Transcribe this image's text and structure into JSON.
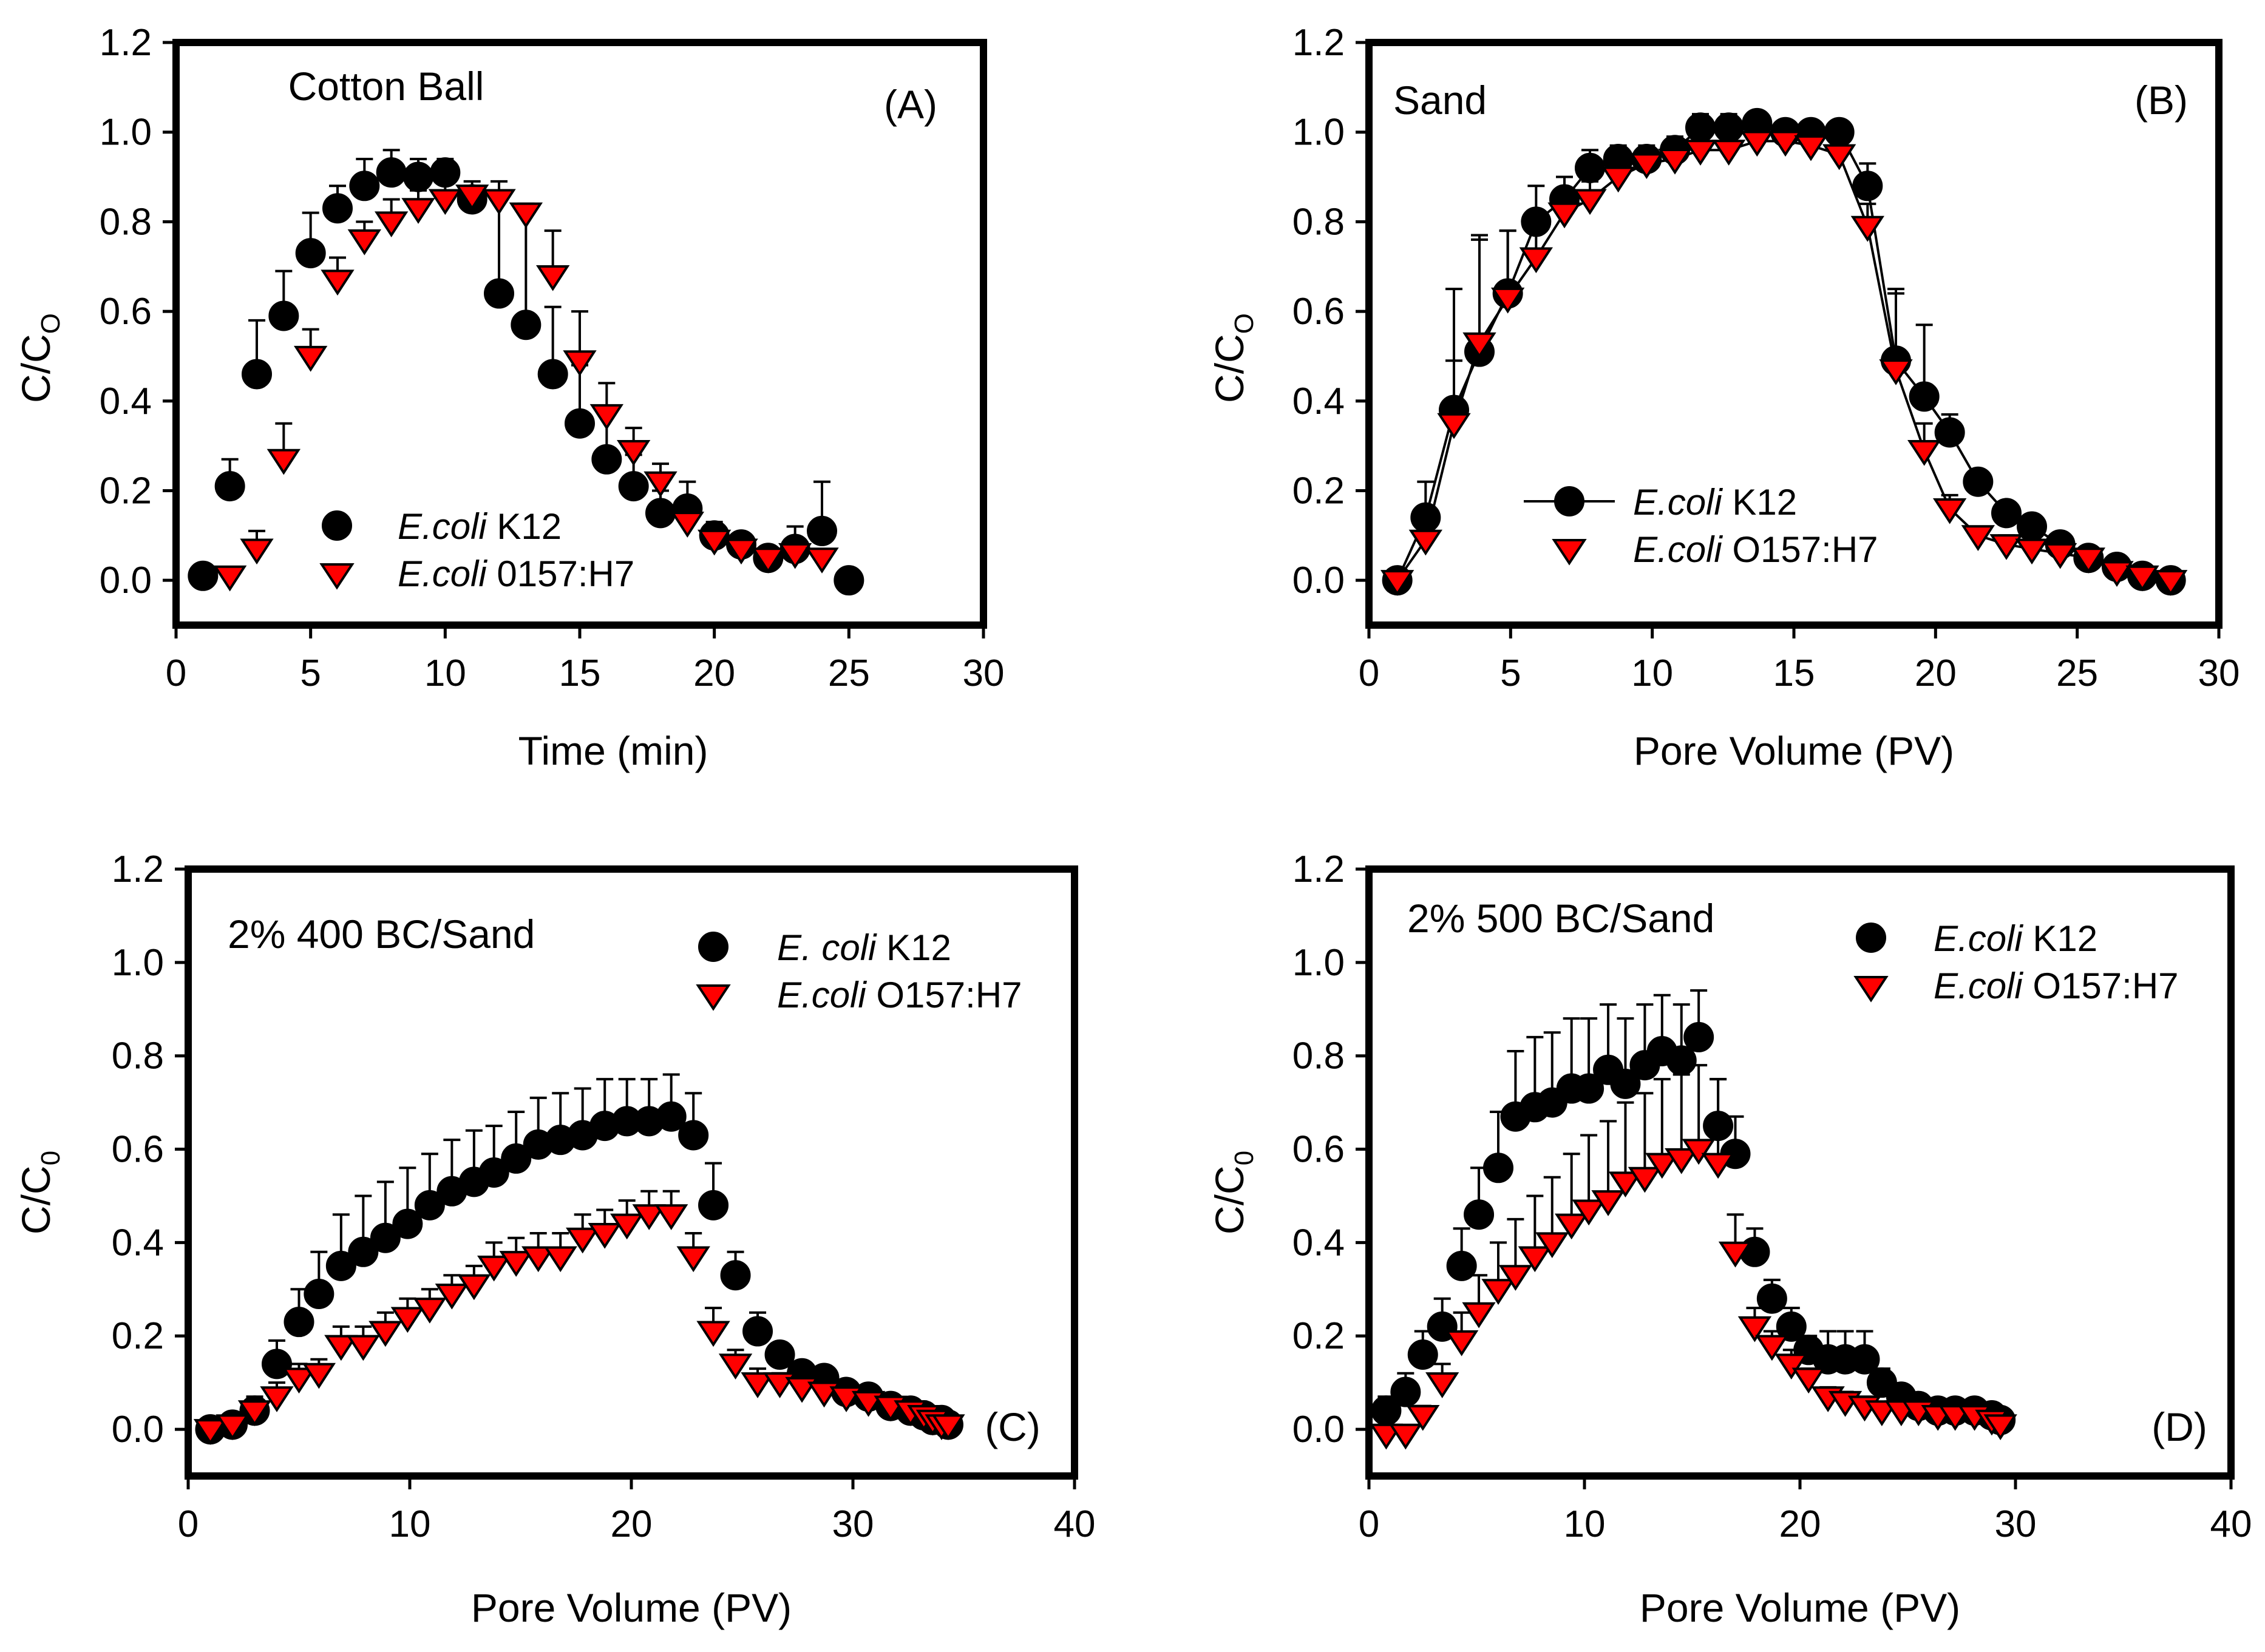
{
  "chart_data": [
    {
      "id": "A",
      "type": "scatter",
      "panel_label": "(A)",
      "annotation": "Cotton Ball",
      "xlabel": "Time (min)",
      "ylabel_main": "C/C",
      "ylabel_sub": "O",
      "xlim": [
        0,
        30
      ],
      "ylim": [
        -0.1,
        1.2
      ],
      "xticks": [
        "0",
        "5",
        "10",
        "15",
        "20",
        "25",
        "30"
      ],
      "yticks": [
        "0.0",
        "0.2",
        "0.4",
        "0.6",
        "0.8",
        "1.0",
        "1.2"
      ],
      "legend_position": "bottom-left",
      "series": [
        {
          "name_italic": "E.coli",
          "name_rest": " K12",
          "marker": "circle",
          "line": false,
          "x": [
            1,
            2,
            3,
            4,
            5,
            6,
            7,
            8,
            9,
            10,
            11,
            12,
            13,
            14,
            15,
            16,
            17,
            18,
            19,
            20,
            21,
            22,
            23,
            24,
            25
          ],
          "y": [
            0.01,
            0.21,
            0.46,
            0.59,
            0.73,
            0.83,
            0.88,
            0.91,
            0.9,
            0.91,
            0.85,
            0.64,
            0.57,
            0.46,
            0.35,
            0.27,
            0.21,
            0.15,
            0.16,
            0.1,
            0.08,
            0.05,
            0.07,
            0.11,
            0.0
          ],
          "err": [
            0,
            0.06,
            0.12,
            0.1,
            0.09,
            0.05,
            0.06,
            0.05,
            0.04,
            0.03,
            0.03,
            0.25,
            0.27,
            0.15,
            0.13,
            0.1,
            0.07,
            0.05,
            0.06,
            0.03,
            0.02,
            0.02,
            0.05,
            0.11,
            0
          ]
        },
        {
          "name_italic": "E.coli",
          "name_rest": " 0157:H7",
          "marker": "triangle",
          "line": false,
          "x": [
            2,
            3,
            4,
            5,
            6,
            7,
            8,
            9,
            10,
            11,
            12,
            13,
            14,
            15,
            16,
            17,
            18,
            19,
            20,
            21,
            22,
            23,
            24
          ],
          "y": [
            0.01,
            0.07,
            0.27,
            0.5,
            0.67,
            0.76,
            0.8,
            0.83,
            0.85,
            0.86,
            0.85,
            0.82,
            0.68,
            0.49,
            0.37,
            0.29,
            0.22,
            0.13,
            0.09,
            0.07,
            0.05,
            0.06,
            0.05
          ],
          "err": [
            0,
            0.04,
            0.08,
            0.06,
            0.05,
            0.04,
            0.05,
            0.04,
            0.04,
            0.03,
            0.02,
            0.02,
            0.1,
            0.11,
            0.07,
            0.05,
            0.04,
            0.03,
            0.02,
            0.02,
            0.02,
            0.03,
            0.02
          ]
        }
      ]
    },
    {
      "id": "B",
      "type": "line",
      "panel_label": "(B)",
      "annotation": "Sand",
      "xlabel": "Pore Volume (PV)",
      "ylabel_main": "C/C",
      "ylabel_sub": "O",
      "xlim": [
        0,
        30
      ],
      "ylim": [
        -0.1,
        1.2
      ],
      "xticks": [
        "0",
        "5",
        "10",
        "15",
        "20",
        "25",
        "30"
      ],
      "yticks": [
        "0.0",
        "0.2",
        "0.4",
        "0.6",
        "0.8",
        "1.0",
        "1.2"
      ],
      "legend_position": "bottom-left",
      "series": [
        {
          "name_italic": "E.coli",
          "name_rest": " K12",
          "marker": "circle",
          "line": true,
          "x": [
            1.0,
            2.0,
            3.0,
            3.9,
            4.9,
            5.9,
            6.9,
            7.8,
            8.8,
            9.8,
            10.8,
            11.7,
            12.7,
            13.7,
            14.7,
            15.6,
            16.6,
            17.6,
            18.6,
            19.6,
            20.5,
            21.5,
            22.5,
            23.4,
            24.4,
            25.4,
            26.4,
            27.3,
            28.3
          ],
          "y": [
            0.0,
            0.14,
            0.38,
            0.51,
            0.64,
            0.8,
            0.85,
            0.92,
            0.94,
            0.94,
            0.96,
            1.01,
            1.01,
            1.02,
            1.0,
            1.0,
            1.0,
            0.88,
            0.49,
            0.41,
            0.33,
            0.22,
            0.15,
            0.12,
            0.08,
            0.05,
            0.03,
            0.01,
            0.0
          ],
          "err": [
            0,
            0.08,
            0.27,
            0.25,
            0.14,
            0.08,
            0.05,
            0.04,
            0.03,
            0.03,
            0.03,
            0.03,
            0.03,
            0.02,
            0.02,
            0.02,
            0.02,
            0.05,
            0.16,
            0.16,
            0.04,
            0.02,
            0.02,
            0.02,
            0.02,
            0.01,
            0.01,
            0,
            0
          ]
        },
        {
          "name_italic": "E.coli",
          "name_rest": " O157:H7",
          "marker": "triangle",
          "line": true,
          "x": [
            1.0,
            2.0,
            3.0,
            3.9,
            4.9,
            5.9,
            6.9,
            7.8,
            8.8,
            9.8,
            10.8,
            11.7,
            12.7,
            13.7,
            14.7,
            15.6,
            16.6,
            17.6,
            18.6,
            19.6,
            20.5,
            21.5,
            22.5,
            23.4,
            24.4,
            25.4,
            26.4,
            27.3,
            28.3
          ],
          "y": [
            0.0,
            0.09,
            0.35,
            0.53,
            0.63,
            0.72,
            0.82,
            0.85,
            0.9,
            0.93,
            0.94,
            0.96,
            0.96,
            0.98,
            0.98,
            0.97,
            0.95,
            0.79,
            0.47,
            0.29,
            0.16,
            0.1,
            0.08,
            0.07,
            0.06,
            0.05,
            0.02,
            0.01,
            0.0
          ],
          "err": [
            0,
            0.07,
            0.14,
            0.24,
            0.15,
            0.07,
            0.05,
            0.04,
            0.03,
            0.03,
            0.03,
            0.03,
            0.03,
            0.02,
            0.02,
            0.02,
            0.02,
            0.05,
            0.17,
            0.06,
            0.03,
            0.02,
            0.02,
            0.02,
            0.01,
            0.01,
            0.01,
            0,
            0
          ]
        }
      ]
    },
    {
      "id": "C",
      "type": "scatter",
      "panel_label": "(C)",
      "annotation": "2% 400 BC/Sand",
      "xlabel": "Pore Volume (PV)",
      "ylabel_main": "C/C",
      "ylabel_sub": "0",
      "xlim": [
        0,
        40
      ],
      "ylim": [
        -0.1,
        1.2
      ],
      "xticks": [
        "0",
        "10",
        "20",
        "30",
        "40"
      ],
      "yticks": [
        "0.0",
        "0.2",
        "0.4",
        "0.6",
        "0.8",
        "1.0",
        "1.2"
      ],
      "legend_position": "top-right",
      "series": [
        {
          "name_italic": "E. coli",
          "name_rest": " K12",
          "marker": "circle",
          "line": false,
          "x": [
            1.0,
            2.0,
            3.0,
            4.0,
            5.0,
            5.9,
            6.9,
            7.9,
            8.9,
            9.9,
            10.9,
            11.9,
            12.9,
            13.8,
            14.8,
            15.8,
            16.8,
            17.8,
            18.8,
            19.8,
            20.8,
            21.8,
            22.8,
            23.7,
            24.7,
            25.7,
            26.7,
            27.7,
            28.7,
            29.7,
            30.7,
            31.7,
            32.6,
            33.2,
            33.6,
            34.0,
            34.3
          ],
          "y": [
            0.0,
            0.01,
            0.04,
            0.14,
            0.23,
            0.29,
            0.35,
            0.38,
            0.41,
            0.44,
            0.48,
            0.51,
            0.53,
            0.55,
            0.58,
            0.61,
            0.62,
            0.63,
            0.65,
            0.66,
            0.66,
            0.67,
            0.63,
            0.48,
            0.33,
            0.21,
            0.16,
            0.12,
            0.11,
            0.08,
            0.07,
            0.05,
            0.04,
            0.03,
            0.02,
            0.02,
            0.01
          ],
          "err": [
            0,
            0.02,
            0.03,
            0.05,
            0.07,
            0.09,
            0.11,
            0.12,
            0.12,
            0.12,
            0.11,
            0.11,
            0.11,
            0.1,
            0.1,
            0.1,
            0.1,
            0.1,
            0.1,
            0.09,
            0.09,
            0.09,
            0.09,
            0.09,
            0.05,
            0.04,
            0.02,
            0.02,
            0.02,
            0.02,
            0.01,
            0.01,
            0.01,
            0.01,
            0.01,
            0.01,
            0
          ]
        },
        {
          "name_italic": "E.coli",
          "name_rest": " O157:H7",
          "marker": "triangle",
          "line": false,
          "x": [
            1.0,
            2.0,
            3.0,
            4.0,
            5.0,
            5.9,
            6.9,
            7.9,
            8.9,
            9.9,
            10.9,
            11.9,
            12.9,
            13.8,
            14.8,
            15.8,
            16.8,
            17.8,
            18.8,
            19.8,
            20.8,
            21.8,
            22.8,
            23.7,
            24.7,
            25.7,
            26.7,
            27.7,
            28.7,
            29.7,
            30.7,
            31.7,
            32.6,
            33.2,
            33.6,
            34.0,
            34.3
          ],
          "y": [
            0.0,
            0.01,
            0.04,
            0.07,
            0.11,
            0.12,
            0.18,
            0.18,
            0.21,
            0.24,
            0.26,
            0.29,
            0.31,
            0.35,
            0.36,
            0.37,
            0.37,
            0.41,
            0.42,
            0.44,
            0.46,
            0.46,
            0.37,
            0.21,
            0.14,
            0.1,
            0.1,
            0.09,
            0.08,
            0.07,
            0.06,
            0.05,
            0.04,
            0.03,
            0.02,
            0.01,
            0.01
          ],
          "err": [
            0,
            0.01,
            0.02,
            0.03,
            0.03,
            0.03,
            0.04,
            0.04,
            0.04,
            0.04,
            0.04,
            0.04,
            0.04,
            0.05,
            0.05,
            0.05,
            0.05,
            0.05,
            0.05,
            0.05,
            0.05,
            0.05,
            0.05,
            0.05,
            0.03,
            0.03,
            0.02,
            0.02,
            0.02,
            0.02,
            0.01,
            0.01,
            0.01,
            0.01,
            0.01,
            0.01,
            0
          ]
        }
      ]
    },
    {
      "id": "D",
      "type": "scatter",
      "panel_label": "(D)",
      "annotation": "2% 500 BC/Sand",
      "xlabel": "Pore Volume (PV)",
      "ylabel_main": "C/C",
      "ylabel_sub": "0",
      "xlim": [
        0,
        40
      ],
      "ylim": [
        -0.1,
        1.2
      ],
      "xticks": [
        "0",
        "10",
        "20",
        "30",
        "40"
      ],
      "yticks": [
        "0.0",
        "0.2",
        "0.4",
        "0.6",
        "0.8",
        "1.0",
        "1.2"
      ],
      "legend_position": "top-right",
      "series": [
        {
          "name_italic": "E.coli",
          "name_rest": " K12",
          "marker": "circle",
          "line": false,
          "x": [
            0.8,
            1.7,
            2.5,
            3.4,
            4.3,
            5.1,
            6.0,
            6.8,
            7.7,
            8.5,
            9.4,
            10.2,
            11.1,
            11.9,
            12.8,
            13.6,
            14.5,
            15.3,
            16.2,
            17.0,
            17.9,
            18.7,
            19.6,
            20.4,
            21.3,
            22.1,
            23.0,
            23.8,
            24.7,
            25.5,
            26.4,
            27.2,
            28.1,
            28.9,
            29.3
          ],
          "y": [
            0.04,
            0.08,
            0.16,
            0.22,
            0.35,
            0.46,
            0.56,
            0.67,
            0.69,
            0.7,
            0.73,
            0.73,
            0.77,
            0.74,
            0.78,
            0.81,
            0.79,
            0.84,
            0.65,
            0.59,
            0.38,
            0.28,
            0.22,
            0.17,
            0.15,
            0.15,
            0.15,
            0.1,
            0.07,
            0.05,
            0.04,
            0.04,
            0.04,
            0.03,
            0.02
          ],
          "err": [
            0.03,
            0.04,
            0.05,
            0.06,
            0.08,
            0.1,
            0.12,
            0.14,
            0.15,
            0.15,
            0.15,
            0.15,
            0.14,
            0.14,
            0.13,
            0.12,
            0.12,
            0.1,
            0.1,
            0.08,
            0.05,
            0.04,
            0.04,
            0.03,
            0.06,
            0.06,
            0.06,
            0.03,
            0.02,
            0.02,
            0.01,
            0.01,
            0.01,
            0.01,
            0.01
          ]
        },
        {
          "name_italic": "E.coli",
          "name_rest": " O157:H7",
          "marker": "triangle",
          "line": false,
          "x": [
            0.8,
            1.7,
            2.5,
            3.4,
            4.3,
            5.1,
            6.0,
            6.8,
            7.7,
            8.5,
            9.4,
            10.2,
            11.1,
            11.9,
            12.8,
            13.6,
            14.5,
            15.3,
            16.2,
            17.0,
            17.9,
            18.7,
            19.6,
            20.4,
            21.3,
            22.1,
            23.0,
            23.8,
            24.7,
            25.5,
            26.4,
            27.2,
            28.1,
            28.9,
            29.3
          ],
          "y": [
            -0.01,
            -0.01,
            0.03,
            0.1,
            0.19,
            0.25,
            0.3,
            0.33,
            0.37,
            0.4,
            0.44,
            0.47,
            0.49,
            0.53,
            0.54,
            0.57,
            0.58,
            0.6,
            0.57,
            0.38,
            0.22,
            0.18,
            0.14,
            0.11,
            0.07,
            0.06,
            0.05,
            0.04,
            0.04,
            0.04,
            0.03,
            0.03,
            0.03,
            0.02,
            0.01
          ],
          "err": [
            0,
            0.01,
            0.02,
            0.04,
            0.06,
            0.08,
            0.1,
            0.12,
            0.13,
            0.14,
            0.15,
            0.16,
            0.17,
            0.17,
            0.18,
            0.18,
            0.18,
            0.18,
            0.18,
            0.08,
            0.04,
            0.03,
            0.03,
            0.02,
            0.02,
            0.02,
            0.02,
            0.01,
            0.01,
            0.01,
            0.01,
            0.01,
            0.01,
            0.01,
            0
          ]
        }
      ]
    }
  ],
  "colors": {
    "circle_fill": "#000000",
    "triangle_fill": "#ff0000",
    "stroke": "#000000"
  }
}
